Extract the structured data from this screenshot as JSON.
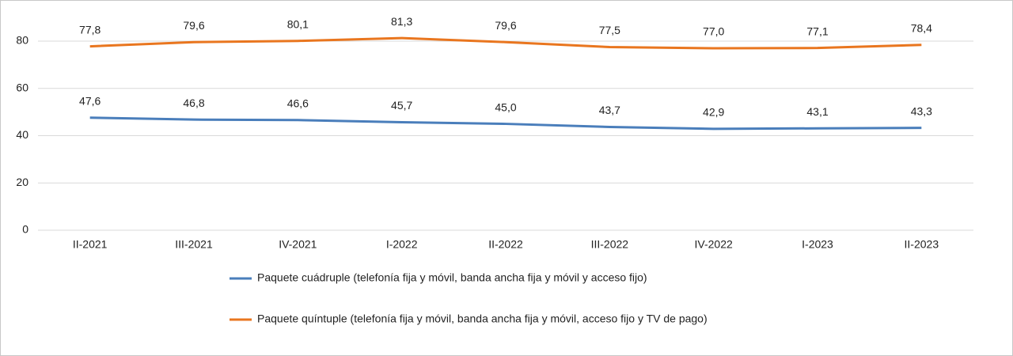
{
  "chart_data": {
    "type": "line",
    "categories": [
      "II-2021",
      "III-2021",
      "IV-2021",
      "I-2022",
      "II-2022",
      "III-2022",
      "IV-2022",
      "I-2023",
      "II-2023"
    ],
    "series": [
      {
        "name": "Paquete cuádruple (telefonía fija y móvil, banda ancha fija y móvil y acceso fijo)",
        "color": "#4a7ebb",
        "values": [
          47.6,
          46.8,
          46.6,
          45.7,
          45.0,
          43.7,
          42.9,
          43.1,
          43.3
        ],
        "value_labels": [
          "47,6",
          "46,8",
          "46,6",
          "45,7",
          "45,0",
          "43,7",
          "42,9",
          "43,1",
          "43,3"
        ]
      },
      {
        "name": "Paquete quíntuple (telefonía fija y móvil, banda ancha fija y móvil, acceso fijo y TV de pago)",
        "color": "#e9761f",
        "values": [
          77.8,
          79.6,
          80.1,
          81.3,
          79.6,
          77.5,
          77.0,
          77.1,
          78.4
        ],
        "value_labels": [
          "77,8",
          "79,6",
          "80,1",
          "81,3",
          "79,6",
          "77,5",
          "77,0",
          "77,1",
          "78,4"
        ]
      }
    ],
    "ylim": [
      0,
      80
    ],
    "yticks": [
      0,
      20,
      40,
      60,
      80
    ],
    "grid": true,
    "legend": "bottom"
  }
}
